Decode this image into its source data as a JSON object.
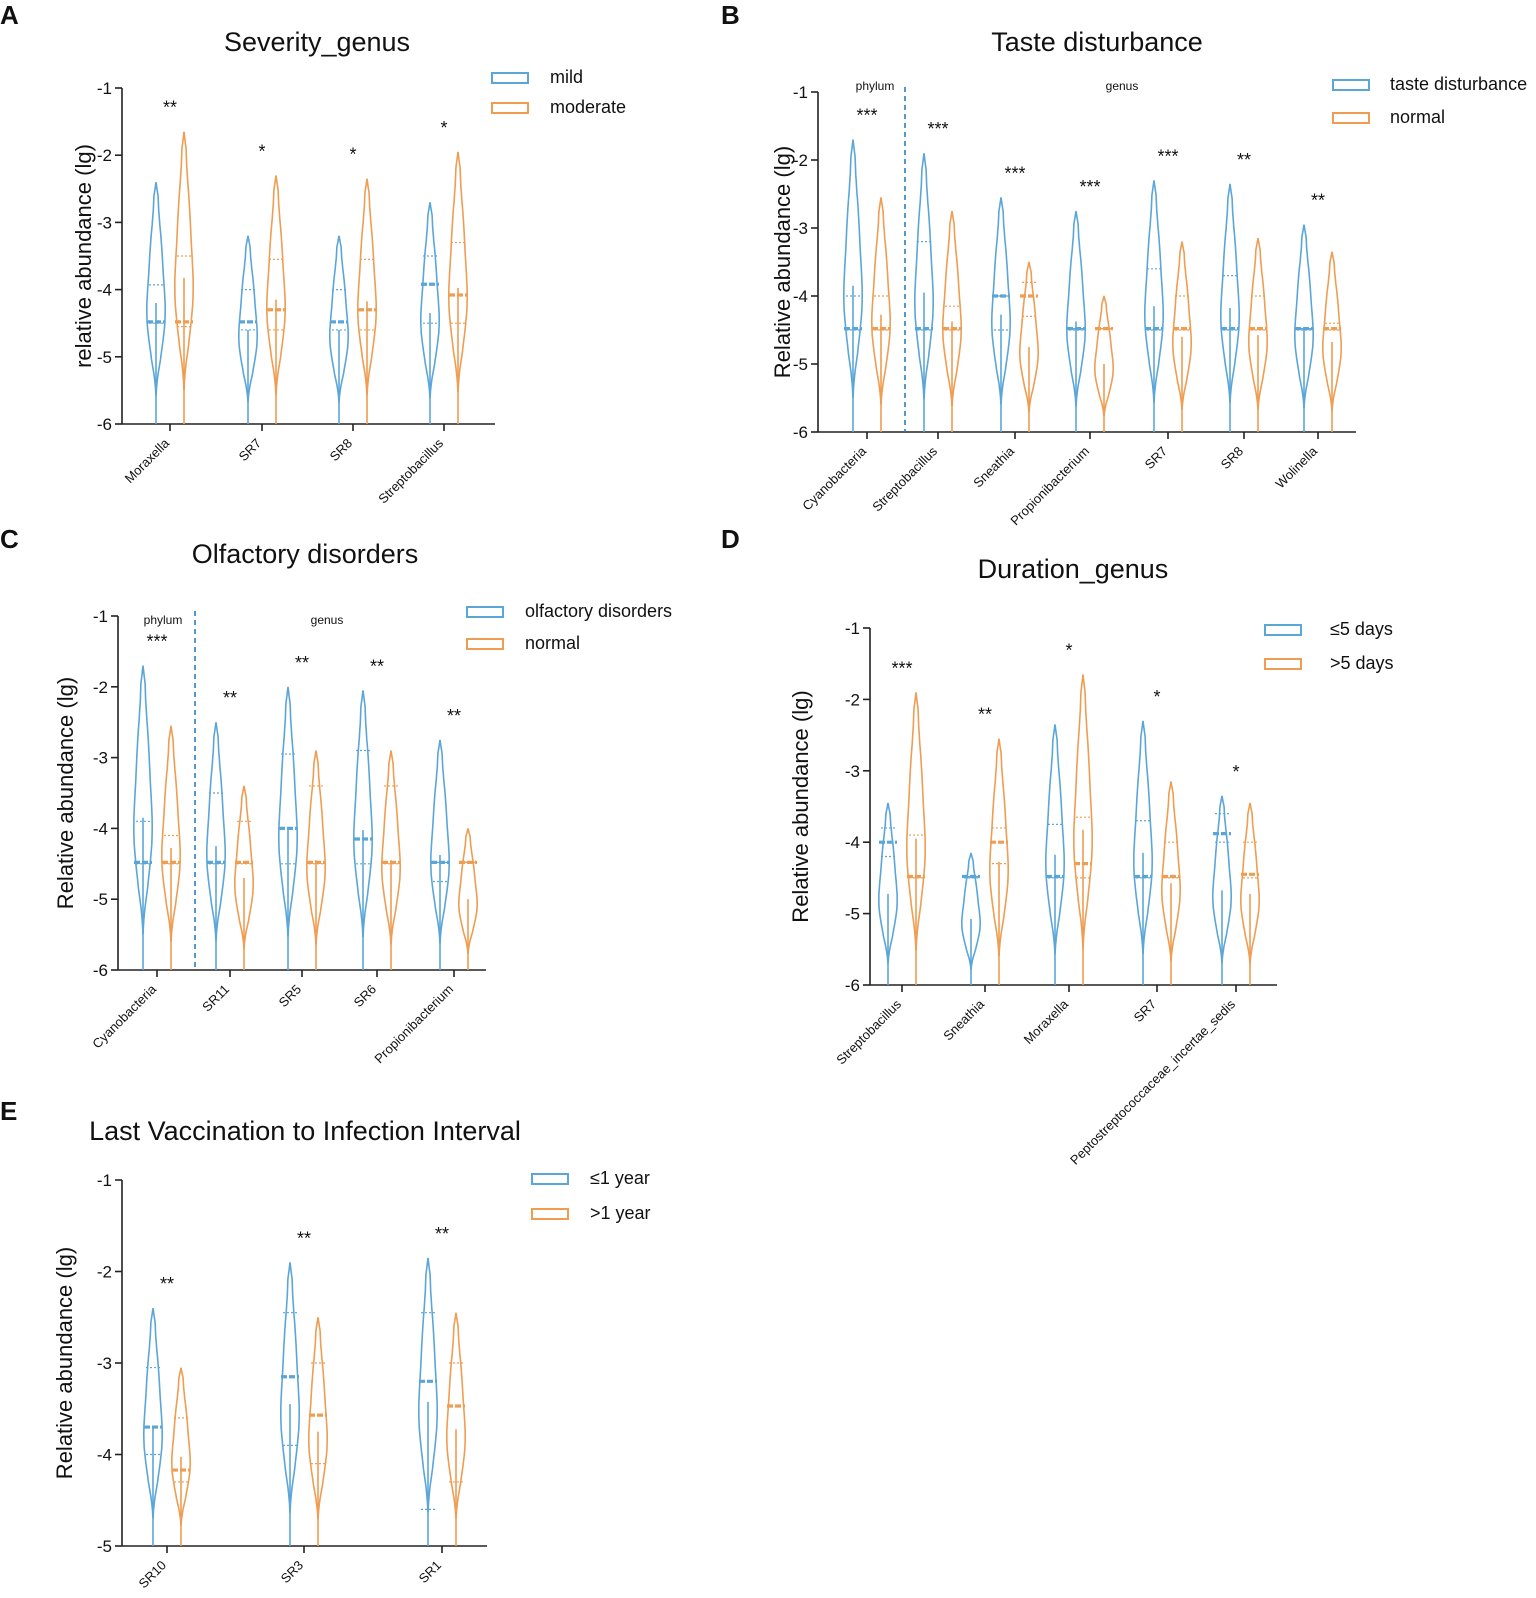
{
  "figure_panels": [
    "A",
    "B",
    "C",
    "D",
    "E"
  ],
  "chart_data": [
    {
      "panel": "A",
      "type": "violin",
      "title": "Severity_genus",
      "ylabel": "relative abundance (lg)",
      "ylim": [
        -6,
        -1
      ],
      "yticks": [
        -1,
        -2,
        -3,
        -4,
        -5,
        -6
      ],
      "categories": [
        "Moraxella",
        "SR7",
        "SR8",
        "Streptobacillus"
      ],
      "legend": [
        "mild",
        "moderate"
      ],
      "colors": [
        "#5ba6d8",
        "#ee9d52"
      ],
      "significance": [
        "**",
        "*",
        "*",
        "*"
      ],
      "group_labels": [],
      "series": [
        {
          "name": "mild",
          "top": [
            -2.4,
            -3.2,
            -3.2,
            -2.7
          ],
          "median": [
            -4.48,
            -4.48,
            -4.48,
            -3.92
          ],
          "q1": [
            -4.5,
            -4.6,
            -4.6,
            -4.5
          ],
          "q3": [
            -3.93,
            -4.0,
            -4.0,
            -3.5
          ]
        },
        {
          "name": "moderate",
          "top": [
            -1.65,
            -2.3,
            -2.35,
            -1.95
          ],
          "median": [
            -4.48,
            -4.3,
            -4.3,
            -4.08
          ],
          "q1": [
            -4.55,
            -4.6,
            -4.6,
            -4.5
          ],
          "q3": [
            -3.5,
            -3.55,
            -3.55,
            -3.3
          ]
        }
      ]
    },
    {
      "panel": "B",
      "type": "violin",
      "title": "Taste disturbance",
      "ylabel": "Relative abundance (lg)",
      "ylim": [
        -6,
        -1
      ],
      "yticks": [
        -1,
        -2,
        -3,
        -4,
        -5,
        -6
      ],
      "categories": [
        "Cyanobacteria",
        "Streptobacillus",
        "Sneathia",
        "Propionibacterium",
        "SR7",
        "SR8",
        "Wolinella"
      ],
      "legend": [
        "taste disturbance",
        "normal"
      ],
      "colors": [
        "#5ba6d8",
        "#ee9d52"
      ],
      "significance": [
        "***",
        "***",
        "***",
        "***",
        "***",
        "**",
        "**"
      ],
      "group_labels": [
        "phylum",
        "genus"
      ],
      "series": [
        {
          "name": "taste disturbance",
          "top": [
            -1.7,
            -1.9,
            -2.55,
            -2.75,
            -2.3,
            -2.35,
            -2.95
          ],
          "median": [
            -4.48,
            -4.48,
            -4.0,
            -4.48,
            -4.48,
            -4.48,
            -4.48
          ],
          "q1": [
            -4.5,
            -4.5,
            -4.5,
            -4.5,
            -4.5,
            -4.5,
            -4.5
          ],
          "q3": [
            -4.0,
            -3.2,
            -4.0,
            -4.48,
            -3.6,
            -3.7,
            -4.48
          ]
        },
        {
          "name": "normal",
          "top": [
            -2.55,
            -2.75,
            -3.5,
            -4.0,
            -3.2,
            -3.15,
            -3.35
          ],
          "median": [
            -4.48,
            -4.48,
            -4.0,
            -4.48,
            -4.48,
            -4.48,
            -4.48
          ],
          "q1": [
            -4.5,
            -4.5,
            -4.3,
            -4.48,
            -4.5,
            -4.5,
            -4.5
          ],
          "q3": [
            -4.0,
            -4.15,
            -3.8,
            -4.48,
            -4.0,
            -4.0,
            -4.4
          ]
        }
      ]
    },
    {
      "panel": "C",
      "type": "violin",
      "title": "Olfactory disorders",
      "ylabel": "Relative abundance (lg)",
      "ylim": [
        -6,
        -1
      ],
      "yticks": [
        -1,
        -2,
        -3,
        -4,
        -5,
        -6
      ],
      "categories": [
        "Cyanobacteria",
        "SR11",
        "SR5",
        "SR6",
        "Propionibacterium"
      ],
      "legend": [
        "olfactory disorders",
        "normal"
      ],
      "colors": [
        "#5ba6d8",
        "#ee9d52"
      ],
      "significance": [
        "***",
        "**",
        "**",
        "**",
        "**"
      ],
      "group_labels": [
        "phylum",
        "genus"
      ],
      "series": [
        {
          "name": "olfactory disorders",
          "top": [
            -1.7,
            -2.5,
            -2.0,
            -2.05,
            -2.75
          ],
          "median": [
            -4.48,
            -4.48,
            -4.0,
            -4.15,
            -4.48
          ],
          "q1": [
            -4.5,
            -4.5,
            -4.5,
            -4.5,
            -4.75
          ],
          "q3": [
            -3.9,
            -3.5,
            -2.95,
            -2.9,
            -4.48
          ]
        },
        {
          "name": "normal",
          "top": [
            -2.55,
            -3.4,
            -2.9,
            -2.9,
            -4.0
          ],
          "median": [
            -4.48,
            -4.48,
            -4.48,
            -4.48,
            -4.48
          ],
          "q1": [
            -4.5,
            -4.5,
            -4.5,
            -4.5,
            -4.48
          ],
          "q3": [
            -4.1,
            -3.9,
            -3.4,
            -3.4,
            -4.48
          ]
        }
      ]
    },
    {
      "panel": "D",
      "type": "violin",
      "title": "Duration_genus",
      "ylabel": "Relative abundance (lg)",
      "ylim": [
        -6,
        -1
      ],
      "yticks": [
        -1,
        -2,
        -3,
        -4,
        -5,
        -6
      ],
      "categories": [
        "Streptobacillus",
        "Sneathia",
        "Moraxella",
        "SR7",
        "Peptostreptococcaceae_incertae_sedis"
      ],
      "legend": [
        "≤5 days",
        ">5 days"
      ],
      "colors": [
        "#5ba6d8",
        "#ee9d52"
      ],
      "significance": [
        "***",
        "**",
        "*",
        "*",
        "*"
      ],
      "group_labels": [],
      "series": [
        {
          "name": "≤5 days",
          "top": [
            -3.45,
            -4.15,
            -2.35,
            -2.3,
            -3.35
          ],
          "median": [
            -4.0,
            -4.48,
            -4.48,
            -4.48,
            -3.88
          ],
          "q1": [
            -4.2,
            -4.5,
            -4.5,
            -4.5,
            -4.0
          ],
          "q3": [
            -3.8,
            -4.48,
            -3.75,
            -3.7,
            -3.6
          ]
        },
        {
          "name": ">5 days",
          "top": [
            -1.9,
            -2.55,
            -1.65,
            -3.15,
            -3.45
          ],
          "median": [
            -4.48,
            -4.0,
            -4.3,
            -4.48,
            -4.45
          ],
          "q1": [
            -4.5,
            -4.3,
            -4.5,
            -4.5,
            -4.5
          ],
          "q3": [
            -3.9,
            -3.8,
            -3.65,
            -4.0,
            -4.0
          ]
        }
      ]
    },
    {
      "panel": "E",
      "type": "violin",
      "title": "Last Vaccination to Infection Interval",
      "ylabel": "Relative abundance (lg)",
      "ylim": [
        -5,
        -1
      ],
      "yticks": [
        -1,
        -2,
        -3,
        -4,
        -5
      ],
      "categories": [
        "SR10",
        "SR3",
        "SR1"
      ],
      "legend": [
        "≤1 year",
        ">1 year"
      ],
      "colors": [
        "#5ba6d8",
        "#ee9d52"
      ],
      "significance": [
        "**",
        "**",
        "**"
      ],
      "group_labels": [],
      "series": [
        {
          "name": "≤1 year",
          "top": [
            -2.4,
            -1.9,
            -1.85
          ],
          "median": [
            -3.7,
            -3.15,
            -3.2
          ],
          "q1": [
            -4.0,
            -3.9,
            -4.6
          ],
          "q3": [
            -3.05,
            -2.45,
            -2.45
          ]
        },
        {
          "name": ">1 year",
          "top": [
            -3.05,
            -2.5,
            -2.45
          ],
          "median": [
            -4.17,
            -3.57,
            -3.47
          ],
          "q1": [
            -4.3,
            -4.1,
            -4.3
          ],
          "q3": [
            -3.6,
            -3.0,
            -3.0
          ]
        }
      ]
    }
  ]
}
